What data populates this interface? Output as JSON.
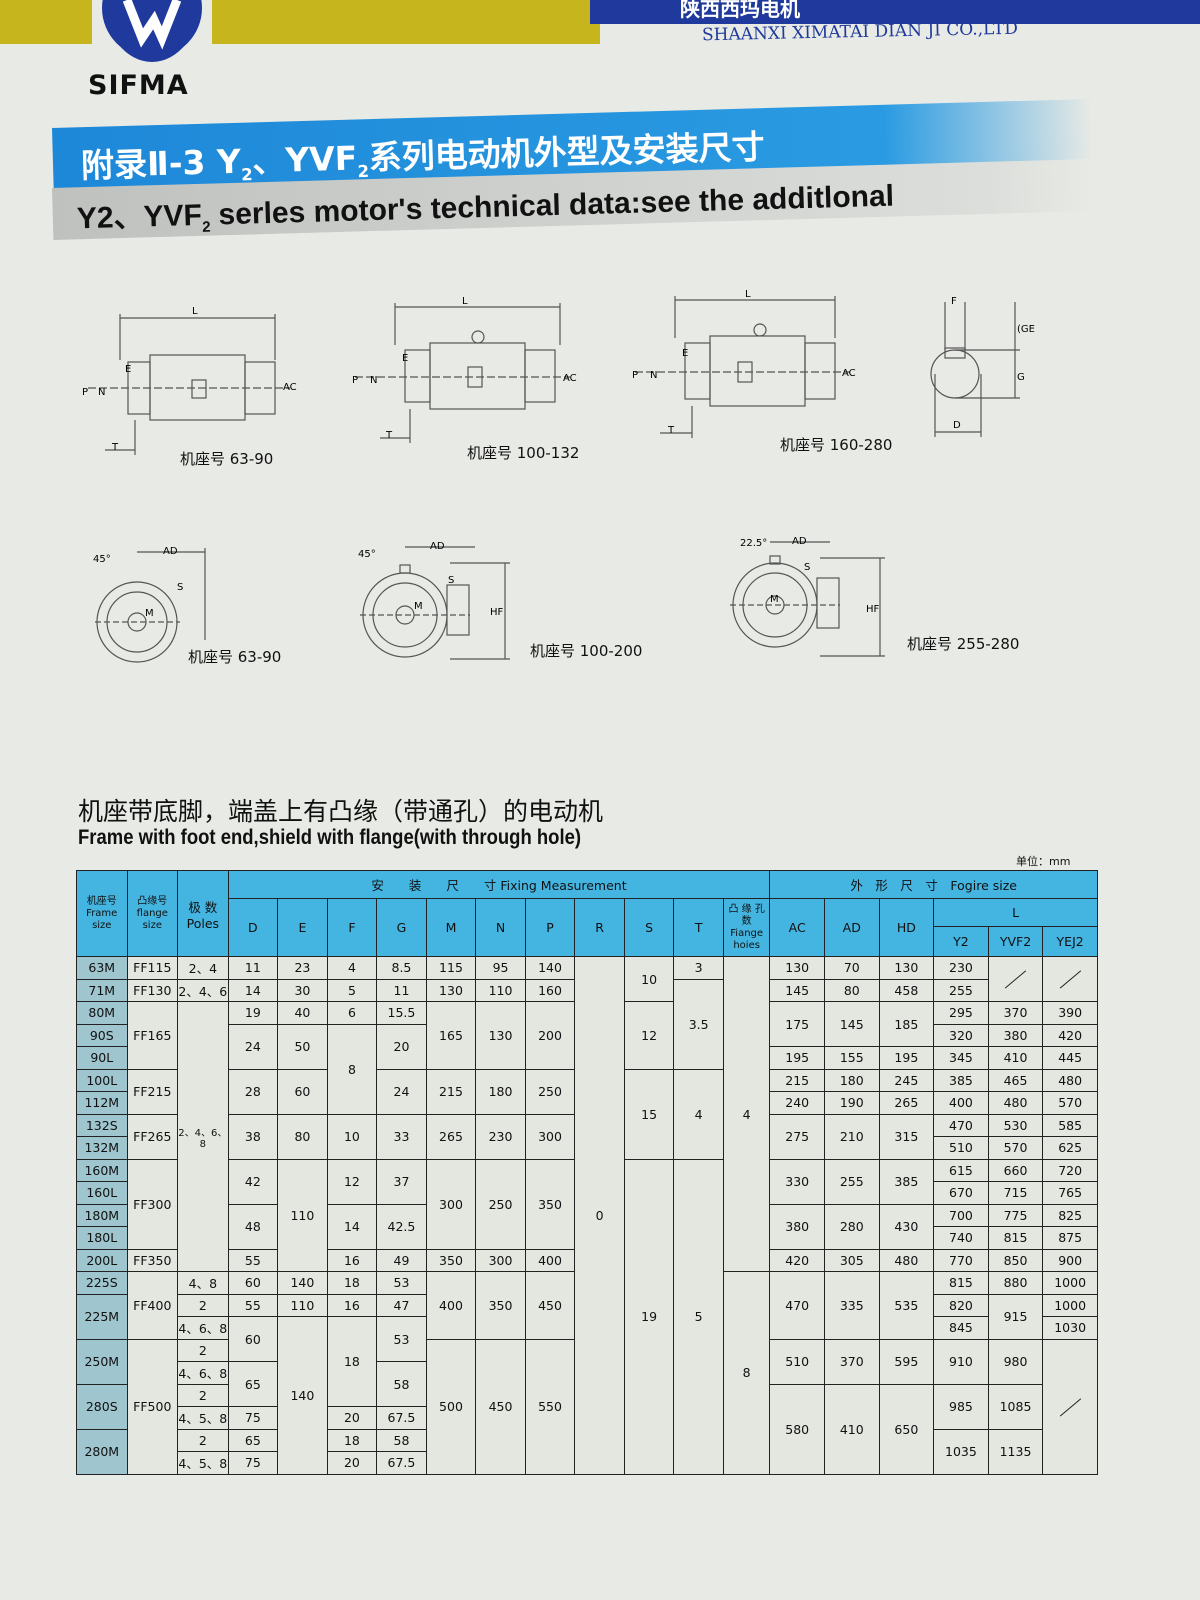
{
  "header": {
    "brand": "SIFMA",
    "company_cn": "陕西西玛电机",
    "company_en": "SHAANXI XIMATAI DIAN JI CO.,LTD",
    "colors": {
      "yellow": "#c6b51d",
      "blue": "#1f3a9c",
      "title_blue": "#1e88d8",
      "table_header": "#44b4e0"
    }
  },
  "title": {
    "cn_pre": "附录Ⅱ-3 Y",
    "cn_mid": "、YVF",
    "cn_post": "系列电动机外型及安装尺寸",
    "sub": "2",
    "en_pre": "Y2、YVF",
    "en_post": " serles motor's technical data:see the additlonal"
  },
  "drawings": {
    "side": [
      {
        "caption": "机座号 63-90"
      },
      {
        "caption": "机座号 100-132"
      },
      {
        "caption": "机座号 160-280"
      }
    ],
    "front": [
      {
        "caption": "机座号 63-90",
        "angle": "45°"
      },
      {
        "caption": "机座号 100-200",
        "angle": "45°"
      },
      {
        "caption": "机座号 255-280",
        "angle": "22.5°"
      }
    ],
    "labels": {
      "L": "L",
      "AC": "AC",
      "P": "P",
      "N": "N",
      "E": "E",
      "T": "T",
      "F": "F",
      "GE": "(GE)",
      "G": "G",
      "D": "D",
      "AD": "AD",
      "S": "S",
      "M": "M",
      "HF": "HF"
    }
  },
  "section": {
    "title_cn": "机座带底脚，端盖上有凸缘（带通孔）的电动机",
    "title_en": "Frame with foot end,shield with flange(with through hole)",
    "unit": "单位：mm"
  },
  "table": {
    "headers": {
      "frame_cn": "机座号",
      "frame_en": "Frame size",
      "flange_cn": "凸缘号",
      "flange_en": "flange size",
      "poles_cn": "极 数",
      "poles_en": "Poles",
      "fixing": "安　　装　　尺　　寸 Fixing Measurement",
      "figure": "外　形　尺　寸　Fogire size",
      "D": "D",
      "E": "E",
      "F": "F",
      "G": "G",
      "M": "M",
      "N": "N",
      "P": "P",
      "R": "R",
      "S": "S",
      "T": "T",
      "holes_cn": "凸 缘 孔 数",
      "holes_en": "Fiange hoies",
      "AC": "AC",
      "AD": "AD",
      "HD": "HD",
      "L": "L",
      "Y2": "Y2",
      "YVF2": "YVF2",
      "YEJ2": "YEJ2"
    },
    "columns": [
      {
        "key": "frame",
        "cells": [
          [
            "63M",
            1
          ],
          [
            "71M",
            1
          ],
          [
            "80M",
            1
          ],
          [
            "90S",
            1
          ],
          [
            "90L",
            1
          ],
          [
            "100L",
            1
          ],
          [
            "112M",
            1
          ],
          [
            "132S",
            1
          ],
          [
            "132M",
            1
          ],
          [
            "160M",
            1
          ],
          [
            "160L",
            1
          ],
          [
            "180M",
            1
          ],
          [
            "180L",
            1
          ],
          [
            "200L",
            1
          ],
          [
            "225S",
            1
          ],
          [
            "225M",
            2
          ],
          [
            "250M",
            2
          ],
          [
            "280S",
            2
          ],
          [
            "280M",
            2
          ]
        ]
      },
      {
        "key": "flange",
        "cells": [
          [
            "FF115",
            1
          ],
          [
            "FF130",
            1
          ],
          [
            "FF165",
            3
          ],
          [
            "FF215",
            2
          ],
          [
            "FF265",
            2
          ],
          [
            "FF300",
            4
          ],
          [
            "FF350",
            1
          ],
          [
            "FF400",
            3
          ],
          [
            "FF500",
            6
          ]
        ]
      },
      {
        "key": "poles",
        "cells": [
          [
            "2、4",
            1
          ],
          [
            "2、4、6",
            1
          ],
          [
            "2、4、6、8",
            12
          ],
          [
            "4、8",
            1
          ],
          [
            "2",
            1
          ],
          [
            "4、6、8",
            1
          ],
          [
            "2",
            1
          ],
          [
            "4、6、8",
            1
          ],
          [
            "2",
            1
          ],
          [
            "4、5、8",
            1
          ],
          [
            "2",
            1
          ],
          [
            "4、5、8",
            1
          ]
        ]
      },
      {
        "key": "D",
        "cells": [
          [
            "11",
            1
          ],
          [
            "14",
            1
          ],
          [
            "19",
            1
          ],
          [
            "24",
            2
          ],
          [
            "28",
            2
          ],
          [
            "38",
            2
          ],
          [
            "42",
            2
          ],
          [
            "48",
            2
          ],
          [
            "55",
            1
          ],
          [
            "60",
            1
          ],
          [
            "55",
            1
          ],
          [
            "60",
            2
          ],
          [
            "65",
            2
          ],
          [
            "75",
            1
          ],
          [
            "65",
            1
          ],
          [
            "75",
            1
          ]
        ]
      },
      {
        "key": "E",
        "cells": [
          [
            "23",
            1
          ],
          [
            "30",
            1
          ],
          [
            "40",
            1
          ],
          [
            "50",
            2
          ],
          [
            "60",
            2
          ],
          [
            "80",
            2
          ],
          [
            "110",
            5
          ],
          [
            "140",
            1
          ],
          [
            "110",
            1
          ],
          [
            "140",
            7
          ]
        ]
      },
      {
        "key": "F",
        "cells": [
          [
            "4",
            1
          ],
          [
            "5",
            1
          ],
          [
            "6",
            1
          ],
          [
            "8",
            4
          ],
          [
            "10",
            2
          ],
          [
            "12",
            2
          ],
          [
            "14",
            2
          ],
          [
            "16",
            1
          ],
          [
            "18",
            1
          ],
          [
            "16",
            1
          ],
          [
            "18",
            4
          ],
          [
            "20",
            1
          ],
          [
            "18",
            1
          ],
          [
            "20",
            1
          ]
        ]
      },
      {
        "key": "G",
        "cells": [
          [
            "8.5",
            1
          ],
          [
            "11",
            1
          ],
          [
            "15.5",
            1
          ],
          [
            "20",
            2
          ],
          [
            "24",
            2
          ],
          [
            "33",
            2
          ],
          [
            "37",
            2
          ],
          [
            "42.5",
            2
          ],
          [
            "49",
            1
          ],
          [
            "53",
            1
          ],
          [
            "47",
            1
          ],
          [
            "53",
            2
          ],
          [
            "58",
            2
          ],
          [
            "67.5",
            1
          ],
          [
            "58",
            1
          ],
          [
            "67.5",
            1
          ]
        ]
      },
      {
        "key": "M",
        "cells": [
          [
            "115",
            1
          ],
          [
            "130",
            1
          ],
          [
            "165",
            3
          ],
          [
            "215",
            2
          ],
          [
            "265",
            2
          ],
          [
            "300",
            4
          ],
          [
            "350",
            1
          ],
          [
            "400",
            3
          ],
          [
            "500",
            6
          ]
        ]
      },
      {
        "key": "N",
        "cells": [
          [
            "95",
            1
          ],
          [
            "110",
            1
          ],
          [
            "130",
            3
          ],
          [
            "180",
            2
          ],
          [
            "230",
            2
          ],
          [
            "250",
            4
          ],
          [
            "300",
            1
          ],
          [
            "350",
            3
          ],
          [
            "450",
            6
          ]
        ]
      },
      {
        "key": "P",
        "cells": [
          [
            "140",
            1
          ],
          [
            "160",
            1
          ],
          [
            "200",
            3
          ],
          [
            "250",
            2
          ],
          [
            "300",
            2
          ],
          [
            "350",
            4
          ],
          [
            "400",
            1
          ],
          [
            "450",
            3
          ],
          [
            "550",
            6
          ]
        ]
      },
      {
        "key": "R",
        "cells": [
          [
            "0",
            23
          ]
        ]
      },
      {
        "key": "S",
        "cells": [
          [
            "10",
            2
          ],
          [
            "12",
            3
          ],
          [
            "15",
            4
          ],
          [
            "19",
            14
          ]
        ]
      },
      {
        "key": "T",
        "cells": [
          [
            "3",
            1
          ],
          [
            "3.5",
            4
          ],
          [
            "4",
            4
          ],
          [
            "5",
            14
          ]
        ]
      },
      {
        "key": "holes",
        "cells": [
          [
            "4",
            14
          ],
          [
            "8",
            9
          ]
        ]
      },
      {
        "key": "AC",
        "cells": [
          [
            "130",
            1
          ],
          [
            "145",
            1
          ],
          [
            "175",
            2
          ],
          [
            "195",
            1
          ],
          [
            "215",
            1
          ],
          [
            "240",
            1
          ],
          [
            "275",
            2
          ],
          [
            "330",
            2
          ],
          [
            "380",
            2
          ],
          [
            "420",
            1
          ],
          [
            "470",
            3
          ],
          [
            "510",
            2
          ],
          [
            "580",
            4
          ]
        ]
      },
      {
        "key": "AD",
        "cells": [
          [
            "70",
            1
          ],
          [
            "80",
            1
          ],
          [
            "145",
            2
          ],
          [
            "155",
            1
          ],
          [
            "180",
            1
          ],
          [
            "190",
            1
          ],
          [
            "210",
            2
          ],
          [
            "255",
            2
          ],
          [
            "280",
            2
          ],
          [
            "305",
            1
          ],
          [
            "335",
            3
          ],
          [
            "370",
            2
          ],
          [
            "410",
            4
          ]
        ]
      },
      {
        "key": "HD",
        "cells": [
          [
            "130",
            1
          ],
          [
            "458",
            1
          ],
          [
            "185",
            2
          ],
          [
            "195",
            1
          ],
          [
            "245",
            1
          ],
          [
            "265",
            1
          ],
          [
            "315",
            2
          ],
          [
            "385",
            2
          ],
          [
            "430",
            2
          ],
          [
            "480",
            1
          ],
          [
            "535",
            3
          ],
          [
            "595",
            2
          ],
          [
            "650",
            4
          ]
        ]
      },
      {
        "key": "Y2",
        "cells": [
          [
            "230",
            1
          ],
          [
            "255",
            1
          ],
          [
            "295",
            1
          ],
          [
            "320",
            1
          ],
          [
            "345",
            1
          ],
          [
            "385",
            1
          ],
          [
            "400",
            1
          ],
          [
            "470",
            1
          ],
          [
            "510",
            1
          ],
          [
            "615",
            1
          ],
          [
            "670",
            1
          ],
          [
            "700",
            1
          ],
          [
            "740",
            1
          ],
          [
            "770",
            1
          ],
          [
            "815",
            1
          ],
          [
            "820",
            1
          ],
          [
            "845",
            1
          ],
          [
            "910",
            2
          ],
          [
            "985",
            2
          ],
          [
            "1035",
            2
          ]
        ]
      },
      {
        "key": "YVF2",
        "cells": [
          [
            "/",
            2
          ],
          [
            "370",
            1
          ],
          [
            "380",
            1
          ],
          [
            "410",
            1
          ],
          [
            "465",
            1
          ],
          [
            "480",
            1
          ],
          [
            "530",
            1
          ],
          [
            "570",
            1
          ],
          [
            "660",
            1
          ],
          [
            "715",
            1
          ],
          [
            "775",
            1
          ],
          [
            "815",
            1
          ],
          [
            "850",
            1
          ],
          [
            "880",
            1
          ],
          [
            "915",
            2
          ],
          [
            "980",
            2
          ],
          [
            "1085",
            2
          ],
          [
            "1135",
            2
          ]
        ]
      },
      {
        "key": "YEJ2",
        "cells": [
          [
            "/",
            2
          ],
          [
            "390",
            1
          ],
          [
            "420",
            1
          ],
          [
            "445",
            1
          ],
          [
            "480",
            1
          ],
          [
            "570",
            1
          ],
          [
            "585",
            1
          ],
          [
            "625",
            1
          ],
          [
            "720",
            1
          ],
          [
            "765",
            1
          ],
          [
            "825",
            1
          ],
          [
            "875",
            1
          ],
          [
            "900",
            1
          ],
          [
            "1000",
            1
          ],
          [
            "1000",
            1
          ],
          [
            "1030",
            1
          ],
          [
            "/",
            6
          ]
        ]
      }
    ]
  }
}
